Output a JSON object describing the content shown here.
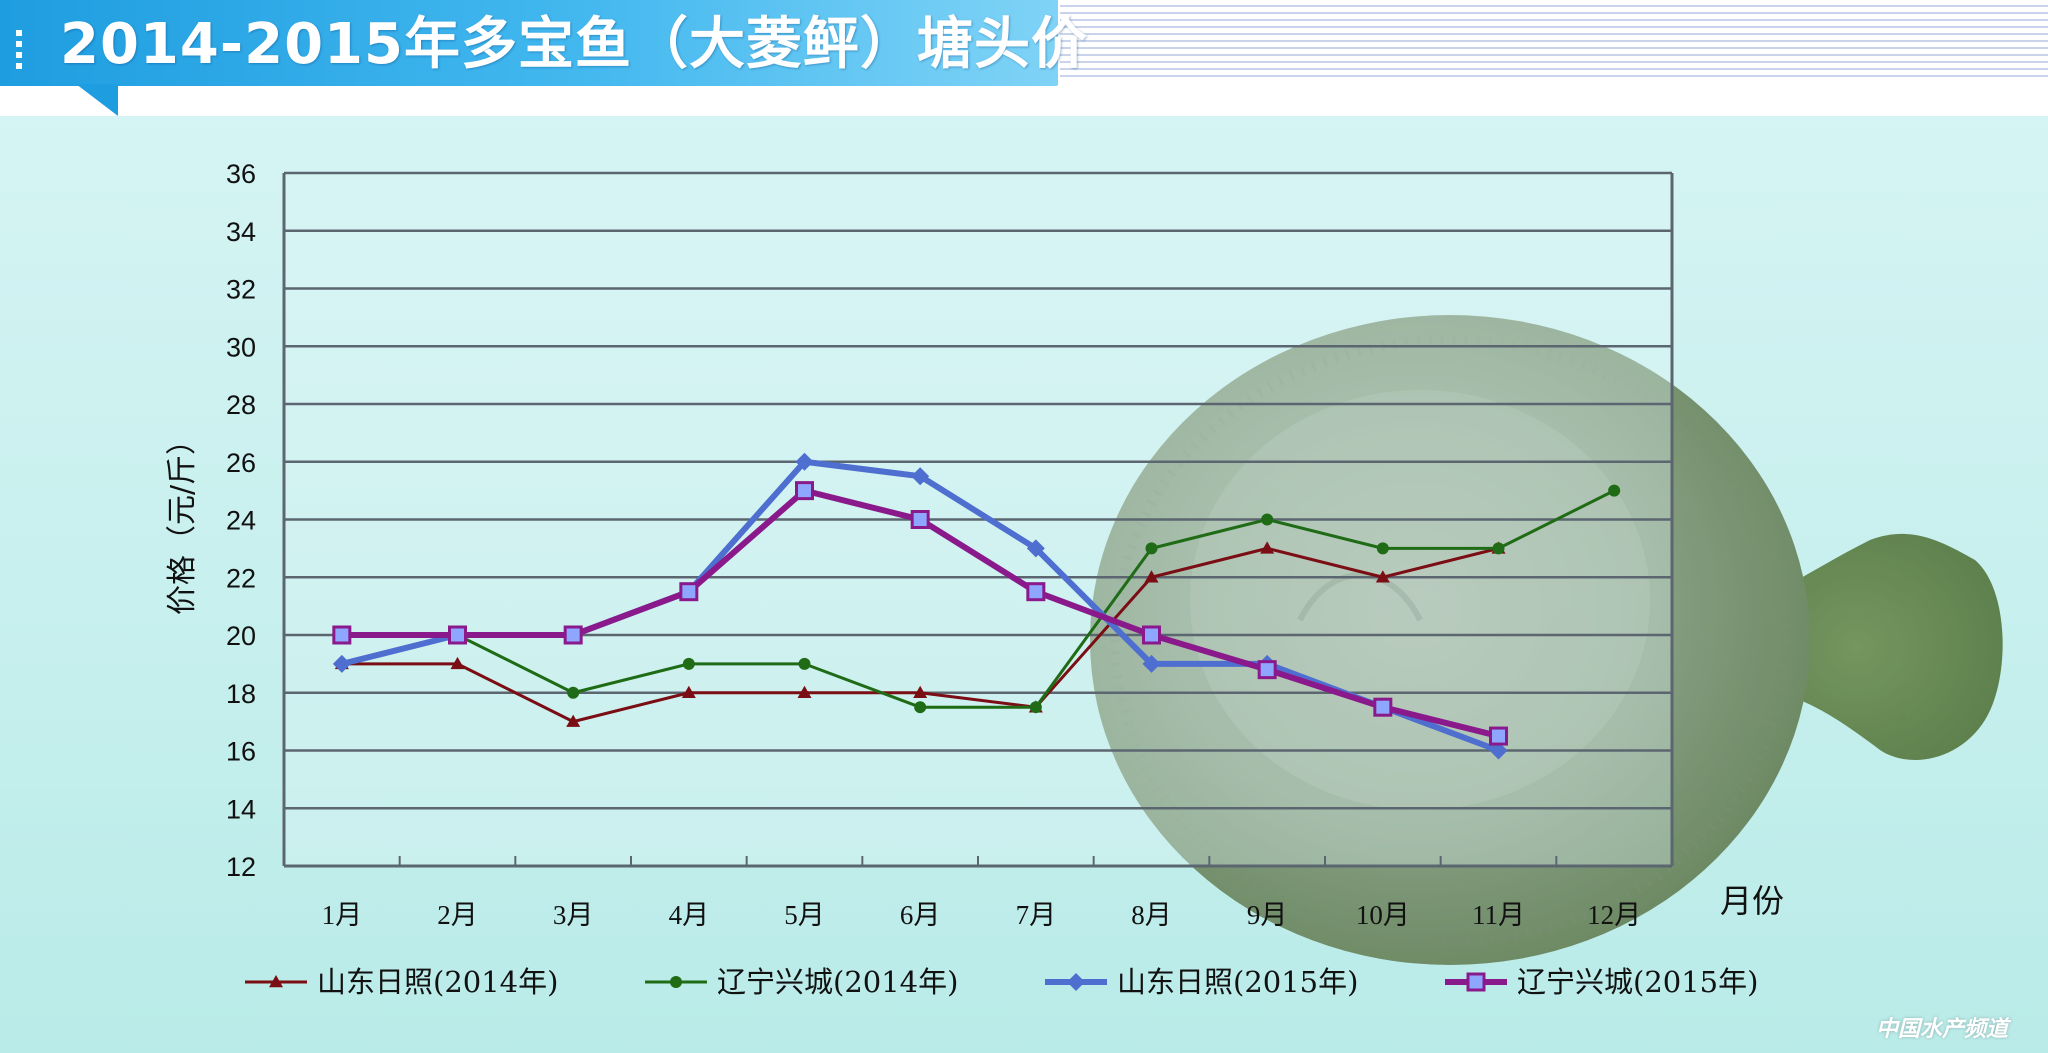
{
  "header": {
    "title": "2014-2015年多宝鱼（大菱鲆）塘头价"
  },
  "watermark": "中国水产频道",
  "colors": {
    "banner": "#1e9de0",
    "grid": "#5b6670",
    "s2014_sd": "#7b0e14",
    "s2014_ln": "#1f6b16",
    "s2015_sd": "#4f6fd0",
    "s2015_ln": "#8a1a8c"
  },
  "chart_data": {
    "type": "line",
    "title": "2014-2015年多宝鱼（大菱鲆）塘头价",
    "xlabel": "月份",
    "ylabel": "价格（元/斤）",
    "ylim": [
      12,
      36
    ],
    "yticks": [
      "12",
      "14",
      "16",
      "18",
      "20",
      "22",
      "24",
      "26",
      "28",
      "30",
      "32",
      "34",
      "36"
    ],
    "categories": [
      "1月",
      "2月",
      "3月",
      "4月",
      "5月",
      "6月",
      "7月",
      "8月",
      "9月",
      "10月",
      "11月",
      "12月"
    ],
    "grid": true,
    "legend_position": "bottom",
    "series": [
      {
        "name": "山东日照(2014年)",
        "color": "#7b0e14",
        "marker": "triangle",
        "width": 3,
        "values": [
          19,
          19,
          17,
          18,
          18,
          18,
          17.5,
          22,
          23,
          22,
          23,
          null
        ]
      },
      {
        "name": "辽宁兴城(2014年)",
        "color": "#1f6b16",
        "marker": "circle",
        "width": 3,
        "values": [
          19,
          20,
          18,
          19,
          19,
          17.5,
          17.5,
          23,
          24,
          23,
          23,
          25
        ]
      },
      {
        "name": "山东日照(2015年)",
        "color": "#4f6fd0",
        "marker": "diamond",
        "width": 6,
        "values": [
          19,
          20,
          20,
          21.5,
          26,
          25.5,
          23,
          19,
          19,
          17.5,
          16,
          null
        ]
      },
      {
        "name": "辽宁兴城(2015年)",
        "color": "#8a1a8c",
        "marker": "square",
        "width": 6,
        "values": [
          20,
          20,
          20,
          21.5,
          25,
          24,
          21.5,
          20,
          18.8,
          17.5,
          16.5,
          null
        ]
      }
    ]
  }
}
